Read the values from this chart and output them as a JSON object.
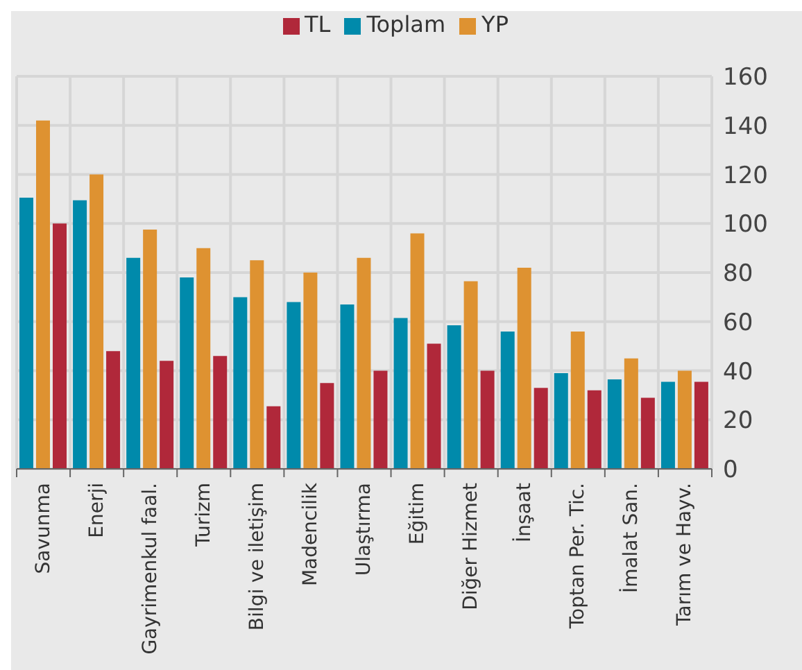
{
  "chart_data": {
    "type": "bar",
    "categories": [
      "Savunma",
      "Enerji",
      "Gayrimenkul faal.",
      "Turizm",
      "Bilgi ve iletişim",
      "Madencilik",
      "Ulaştırma",
      "Eğitim",
      "Diğer Hizmet",
      "İnşaat",
      "Toptan Per. Tic.",
      "İmalat San.",
      "Tarım ve Hayv."
    ],
    "series": [
      {
        "name": "Toplam",
        "color": "#008aab",
        "values": [
          110.5,
          109.5,
          86,
          78,
          70,
          68,
          67,
          61.5,
          58.5,
          56,
          39,
          36.5,
          35.5
        ]
      },
      {
        "name": "YP",
        "color": "#de9231",
        "values": [
          142,
          120,
          97.5,
          90,
          85,
          80,
          86,
          96,
          76.5,
          82,
          56,
          45,
          40
        ]
      },
      {
        "name": "TL",
        "color": "#b0283a",
        "values": [
          100,
          48,
          44,
          46,
          25.5,
          35,
          40,
          51,
          40,
          33,
          32,
          29,
          35.5
        ]
      }
    ],
    "ylim": [
      0,
      160
    ],
    "yticks": [
      0,
      20,
      40,
      60,
      80,
      100,
      120,
      140,
      160
    ],
    "grid": true,
    "legend": "top"
  }
}
